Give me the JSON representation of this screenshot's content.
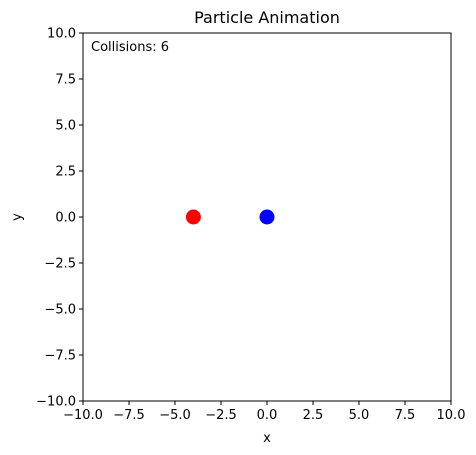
{
  "chart_data": {
    "type": "scatter",
    "title": "Particle Animation",
    "xlabel": "x",
    "ylabel": "y",
    "xlim": [
      -10,
      10
    ],
    "ylim": [
      -10,
      10
    ],
    "grid": false,
    "x_ticks": [
      -10.0,
      -7.5,
      -5.0,
      -2.5,
      0.0,
      2.5,
      5.0,
      7.5,
      10.0
    ],
    "x_tick_labels": [
      "−10.0",
      "−7.5",
      "−5.0",
      "−2.5",
      "0.0",
      "2.5",
      "5.0",
      "7.5",
      "10.0"
    ],
    "y_ticks": [
      10.0,
      7.5,
      5.0,
      2.5,
      0.0,
      -2.5,
      -5.0,
      -7.5,
      -10.0
    ],
    "y_tick_labels": [
      "10.0",
      "7.5",
      "5.0",
      "2.5",
      "0.0",
      "−2.5",
      "−5.0",
      "−7.5",
      "−10.0"
    ],
    "annotation": "Collisions: 6",
    "points": [
      {
        "x": -4.0,
        "y": 0.0,
        "color": "#ff0000"
      },
      {
        "x": 0.0,
        "y": 0.0,
        "color": "#0000ff"
      }
    ]
  }
}
